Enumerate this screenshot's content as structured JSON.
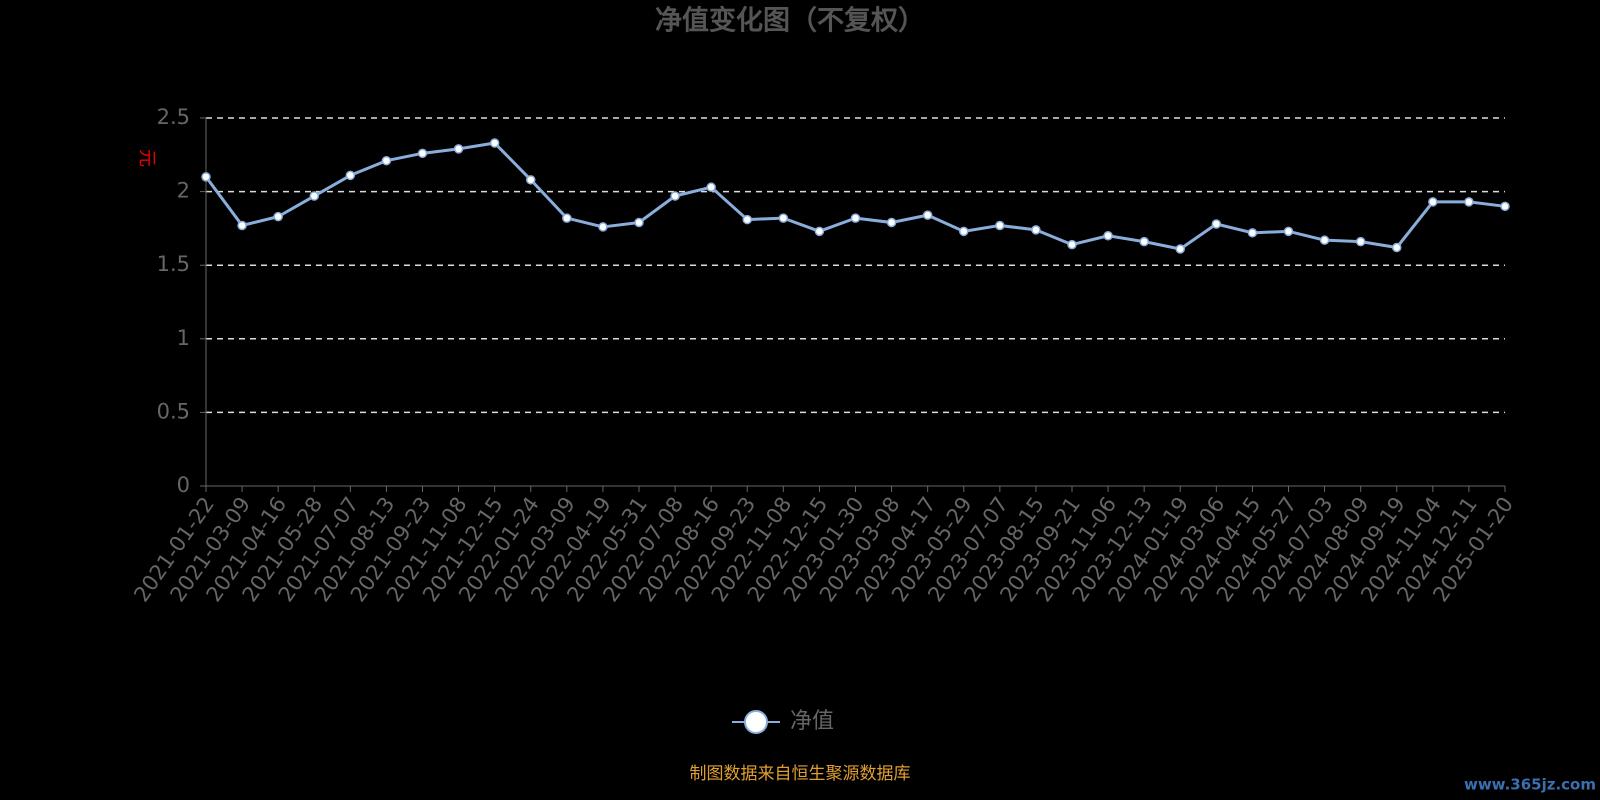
{
  "chart_data": {
    "type": "line",
    "title": "净值变化图（不复权）",
    "y_label": "元",
    "categories": [
      "2021-01-22",
      "2021-03-09",
      "2021-04-16",
      "2021-05-28",
      "2021-07-07",
      "2021-08-13",
      "2021-09-23",
      "2021-11-08",
      "2021-12-15",
      "2022-01-24",
      "2022-03-09",
      "2022-04-19",
      "2022-05-31",
      "2022-07-08",
      "2022-08-16",
      "2022-09-23",
      "2022-11-08",
      "2022-12-15",
      "2023-01-30",
      "2023-03-08",
      "2023-04-17",
      "2023-05-29",
      "2023-07-07",
      "2023-08-15",
      "2023-09-21",
      "2023-11-06",
      "2023-12-13",
      "2024-01-19",
      "2024-03-06",
      "2024-04-15",
      "2024-05-27",
      "2024-07-03",
      "2024-08-09",
      "2024-09-19",
      "2024-11-04",
      "2024-12-11",
      "2025-01-20"
    ],
    "series": [
      {
        "name": "净值",
        "color": "#8aaedc",
        "values": [
          2.1,
          1.77,
          1.83,
          1.97,
          2.11,
          2.21,
          2.26,
          2.29,
          2.33,
          2.08,
          1.82,
          1.76,
          1.79,
          1.97,
          2.03,
          1.81,
          1.82,
          1.73,
          1.82,
          1.79,
          1.84,
          1.73,
          1.77,
          1.74,
          1.64,
          1.7,
          1.66,
          1.61,
          1.78,
          1.72,
          1.73,
          1.67,
          1.66,
          1.62,
          1.93,
          1.93,
          1.9
        ]
      }
    ],
    "ylim": [
      0,
      2.5
    ],
    "yticks": [
      0,
      0.5,
      1,
      1.5,
      2,
      2.5
    ],
    "grid": true,
    "footer": "制图数据来自恒生聚源数据库",
    "watermark": "www.365jz.com"
  }
}
